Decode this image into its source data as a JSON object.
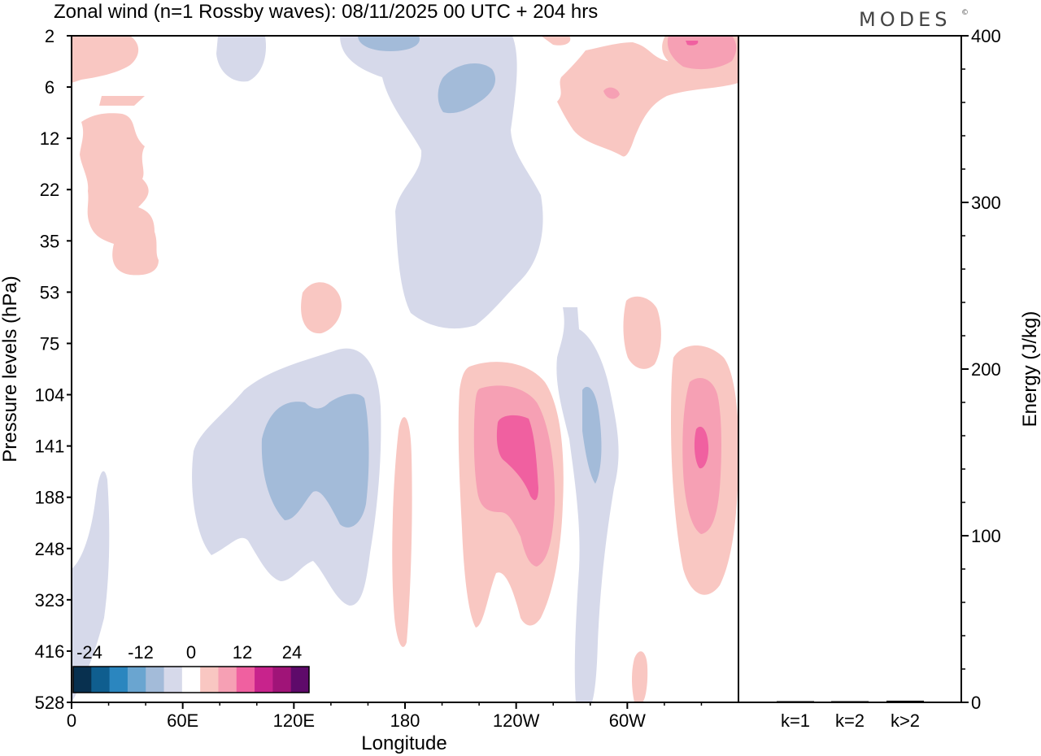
{
  "brand": "MODES",
  "brand_mark": "©",
  "chart_data": [
    {
      "type": "heatmap",
      "title": "Zonal wind (n=1 Rossby waves):  08/11/2025  00 UTC  + 204 hrs",
      "xlabel": "Longitude",
      "ylabel": "Pressure levels (hPa)",
      "x_ticks": [
        "0",
        "60E",
        "120E",
        "180",
        "120W",
        "60W"
      ],
      "y_ticks": [
        "2",
        "6",
        "12",
        "22",
        "35",
        "53",
        "75",
        "104",
        "141",
        "188",
        "248",
        "323",
        "416",
        "528"
      ],
      "colorbar": {
        "tick_labels": [
          "-24",
          "-12",
          "0",
          "12",
          "24"
        ],
        "colors": [
          "#08304f",
          "#0f5e8f",
          "#2b86bf",
          "#6aa5d0",
          "#a3bbd9",
          "#d6d9ea",
          "#ffffff",
          "#f9c7c2",
          "#f6a0b4",
          "#f060a0",
          "#c8238c",
          "#a01478",
          "#5e0a6a"
        ]
      },
      "features": [
        {
          "label": "negative anomaly ~ -4",
          "lon": "60E-150E",
          "level_hPa": "104-323",
          "color": "#d6d9ea"
        },
        {
          "label": "negative anomaly ~ -8",
          "lon": "100E-150E",
          "level_hPa": "110-220",
          "color": "#a3bbd9"
        },
        {
          "label": "positive anomaly max",
          "lon": "120W-140W",
          "level_hPa": "120-188",
          "color": "#f060a0"
        },
        {
          "label": "positive anomaly max",
          "lon": "20W-30W",
          "level_hPa": "125-160",
          "color": "#f060a0"
        },
        {
          "label": "negative anomaly upper",
          "lon": "170W-110W",
          "level_hPa": "2-60",
          "color": "#d6d9ea"
        }
      ]
    },
    {
      "type": "bar",
      "ylabel": "Energy (J/kg)",
      "categories": [
        "k=1",
        "k=2",
        "k>2"
      ],
      "values": [
        0.5,
        0.5,
        1.0
      ],
      "ylim": [
        0,
        400
      ],
      "y_ticks": [
        "0",
        "100",
        "200",
        "300",
        "400"
      ]
    }
  ]
}
